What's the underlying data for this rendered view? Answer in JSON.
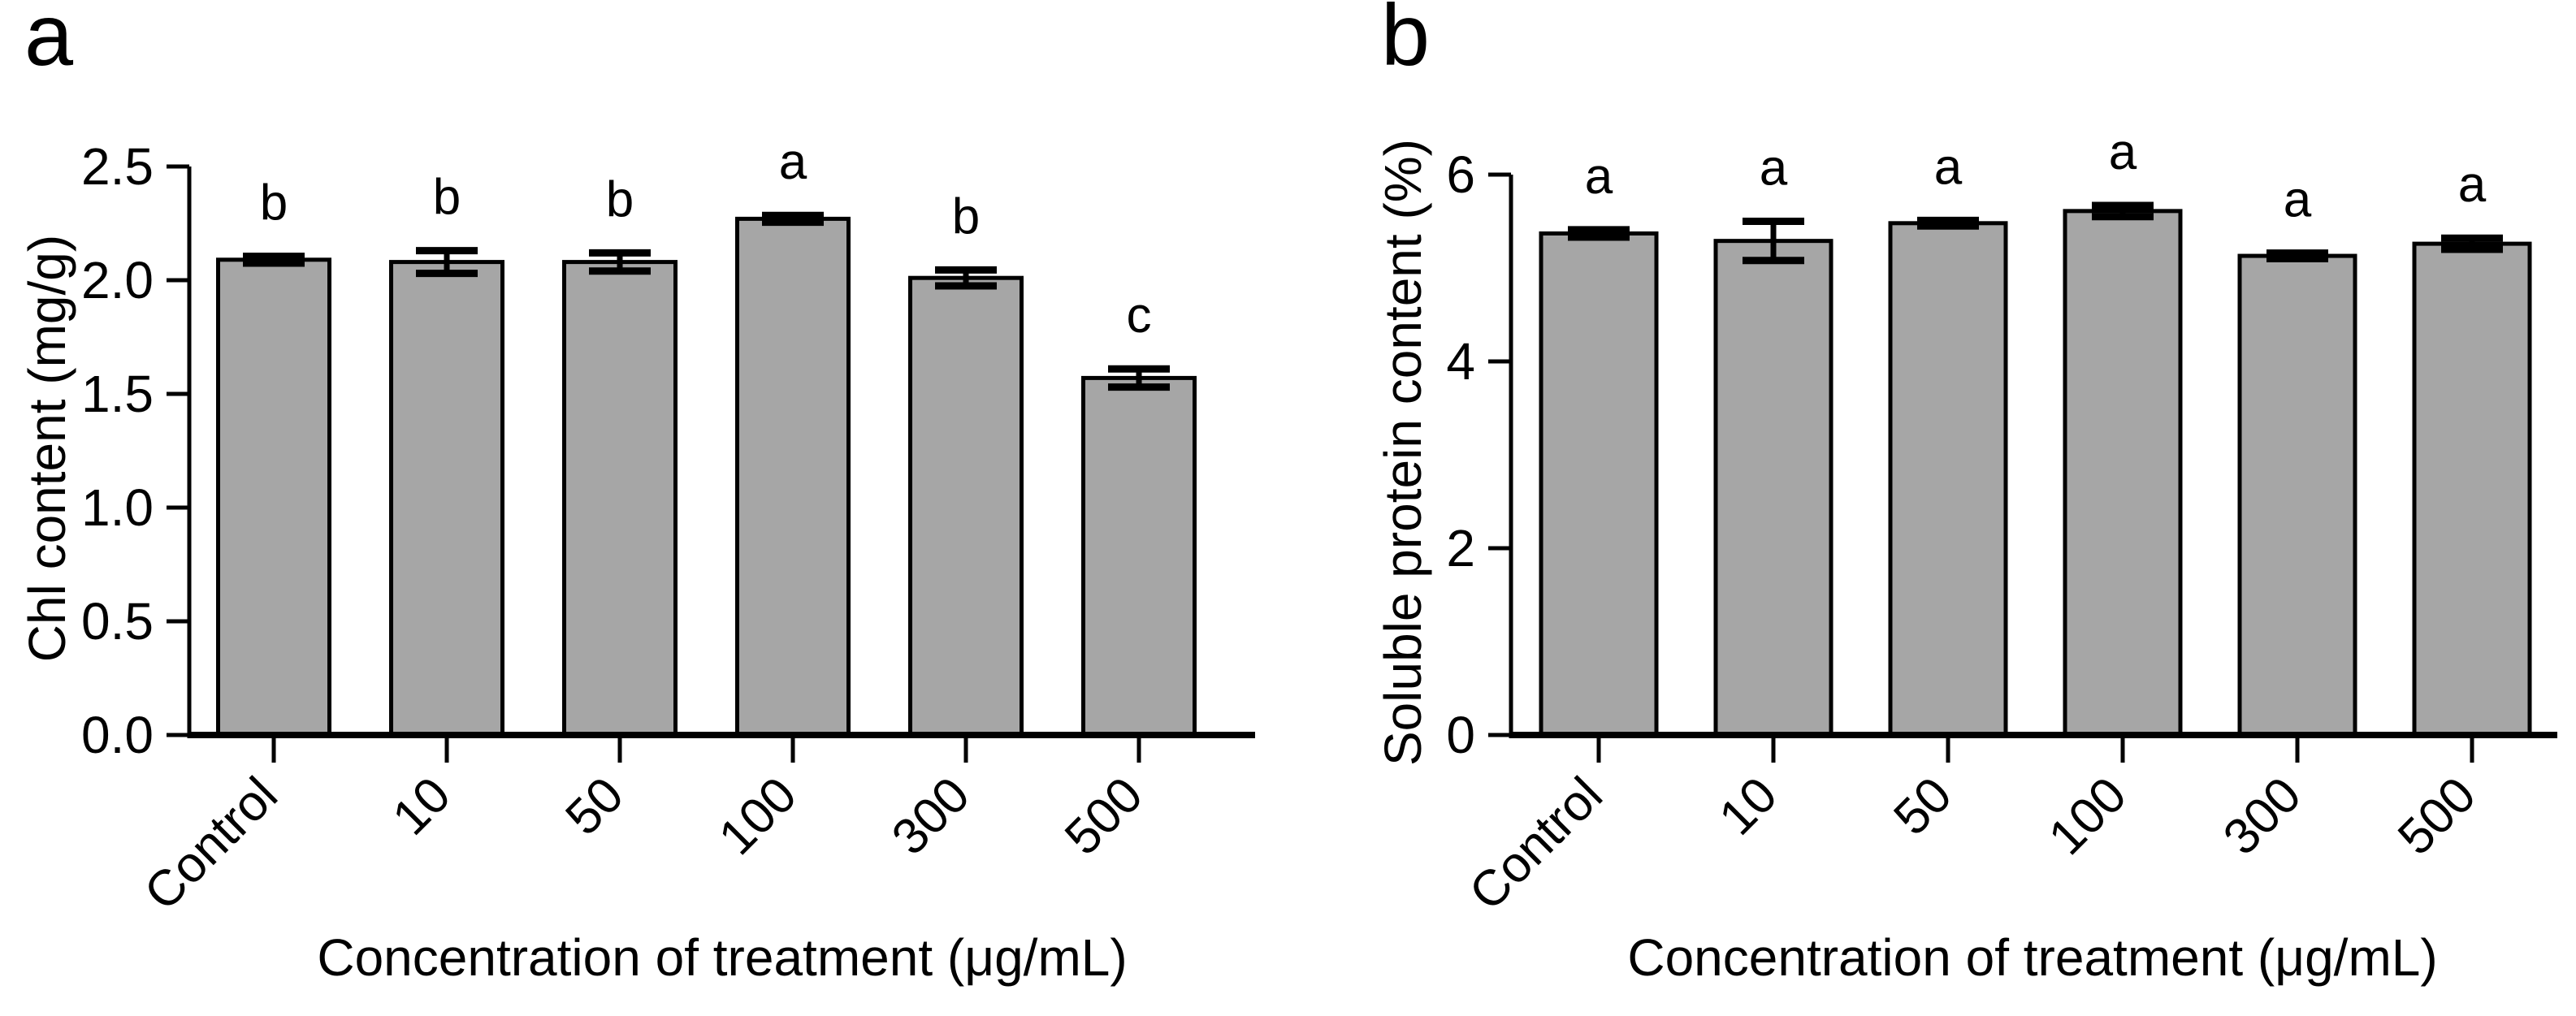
{
  "background": "#ffffff",
  "panels": [
    {
      "label": "a"
    },
    {
      "label": "b"
    }
  ],
  "chart_data": [
    {
      "type": "bar",
      "panel": "a",
      "title": "",
      "categories": [
        "Control",
        "10",
        "50",
        "100",
        "300",
        "500"
      ],
      "values": [
        2.09,
        2.08,
        2.08,
        2.27,
        2.01,
        1.57
      ],
      "errors": [
        0.015,
        0.05,
        0.04,
        0.015,
        0.035,
        0.04
      ],
      "sig_letters": [
        "b",
        "b",
        "b",
        "a",
        "b",
        "c"
      ],
      "xlabel": "Concentration of treatment (μg/mL)",
      "ylabel": "Chl content (mg/g)",
      "ylim": [
        0,
        2.5
      ],
      "yticks": [
        0,
        0.5,
        1,
        1.5,
        2,
        2.5
      ],
      "ytick_labels": [
        "0.0",
        "0.5",
        "1.0",
        "1.5",
        "2.0",
        "2.5"
      ],
      "bar_color": "#a6a6a6",
      "edge_color": "#000000",
      "error_color": "#000000",
      "grid": false,
      "legend": null
    },
    {
      "type": "bar",
      "panel": "b",
      "title": "",
      "categories": [
        "Control",
        "10",
        "50",
        "100",
        "300",
        "500"
      ],
      "values": [
        5.37,
        5.29,
        5.48,
        5.61,
        5.13,
        5.26
      ],
      "errors": [
        0.04,
        0.21,
        0.03,
        0.06,
        0.03,
        0.06
      ],
      "sig_letters": [
        "a",
        "a",
        "a",
        "a",
        "a",
        "a"
      ],
      "xlabel": "Concentration of treatment (μg/mL)",
      "ylabel": "Soluble protein content (%)",
      "ylim": [
        0,
        6
      ],
      "yticks": [
        0,
        2,
        4,
        6
      ],
      "ytick_labels": [
        "0",
        "2",
        "4",
        "6"
      ],
      "bar_color": "#a6a6a6",
      "edge_color": "#000000",
      "error_color": "#000000",
      "grid": false,
      "legend": null
    }
  ]
}
